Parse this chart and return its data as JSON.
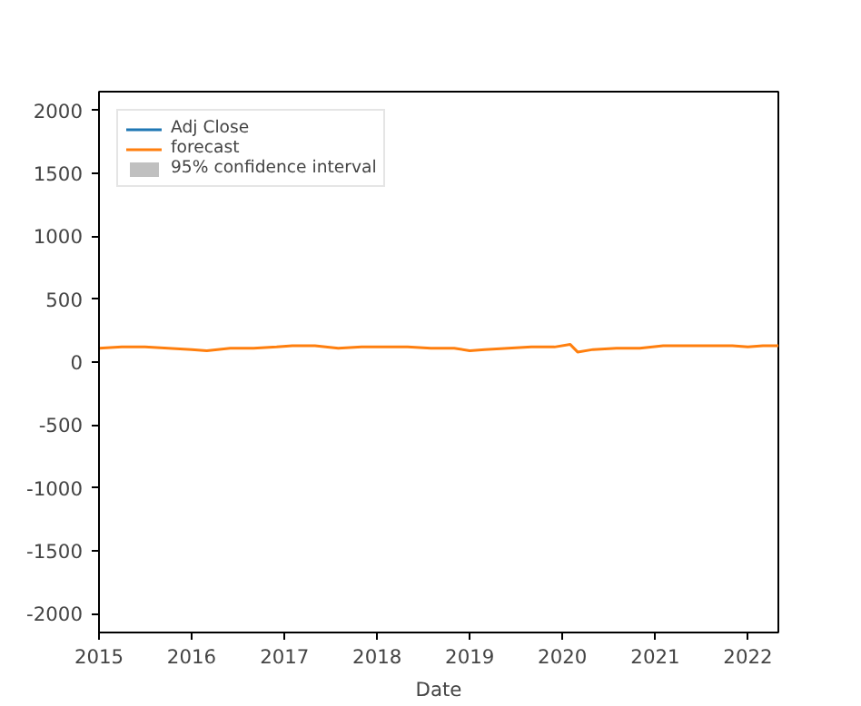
{
  "chart_data": {
    "type": "line",
    "xlabel": "Date",
    "x": [
      "2015-01-01",
      "2015-04-01",
      "2015-07-01",
      "2015-10-01",
      "2016-01-01",
      "2016-03-01",
      "2016-06-01",
      "2016-09-01",
      "2016-12-01",
      "2017-02-01",
      "2017-05-01",
      "2017-08-01",
      "2017-11-01",
      "2018-02-01",
      "2018-05-01",
      "2018-08-01",
      "2018-11-01",
      "2019-01-01",
      "2019-03-01",
      "2019-06-01",
      "2019-09-01",
      "2019-12-01",
      "2020-02-01",
      "2020-03-01",
      "2020-05-01",
      "2020-08-01",
      "2020-11-01",
      "2021-02-01",
      "2021-05-01",
      "2021-08-01",
      "2021-11-01",
      "2022-01-01",
      "2022-03-01",
      "2022-05-01"
    ],
    "series": [
      {
        "name": "Adj Close",
        "color": "#1f77b4",
        "values": [
          null,
          null,
          null,
          null,
          null,
          null,
          null,
          null,
          null,
          null,
          null,
          null,
          null,
          null,
          null,
          null,
          null,
          null,
          null,
          null,
          null,
          null,
          null,
          null,
          null,
          null,
          null,
          null,
          null,
          null,
          null,
          null,
          null,
          null
        ]
      },
      {
        "name": "forecast",
        "color": "#ff7f0e",
        "values": [
          110,
          120,
          120,
          110,
          100,
          90,
          110,
          110,
          120,
          130,
          130,
          110,
          120,
          120,
          120,
          110,
          110,
          90,
          100,
          110,
          120,
          120,
          140,
          80,
          100,
          110,
          110,
          130,
          130,
          130,
          130,
          120,
          130,
          130
        ]
      },
      {
        "name": "95% confidence interval",
        "type": "area",
        "color": "#b0b0b0",
        "values": [
          null,
          null,
          null,
          null,
          null,
          null,
          null,
          null,
          null,
          null,
          null,
          null,
          null,
          null,
          null,
          null,
          null,
          null,
          null,
          null,
          null,
          null,
          null,
          null,
          null,
          null,
          null,
          null,
          null,
          null,
          null,
          null,
          null,
          null
        ]
      }
    ],
    "xlim": [
      "2015-01-01",
      "2022-05-01"
    ],
    "xticks": [
      {
        "value": "2015-01-01",
        "label": "2015"
      },
      {
        "value": "2016-01-01",
        "label": "2016"
      },
      {
        "value": "2017-01-01",
        "label": "2017"
      },
      {
        "value": "2018-01-01",
        "label": "2018"
      },
      {
        "value": "2019-01-01",
        "label": "2019"
      },
      {
        "value": "2020-01-01",
        "label": "2020"
      },
      {
        "value": "2021-01-01",
        "label": "2021"
      },
      {
        "value": "2022-01-01",
        "label": "2022"
      }
    ],
    "ylim": [
      -2150,
      2150
    ],
    "yticks": [
      -2000,
      -1500,
      -1000,
      -500,
      0,
      500,
      1000,
      1500,
      2000
    ],
    "legend": "top left",
    "grid": false
  }
}
